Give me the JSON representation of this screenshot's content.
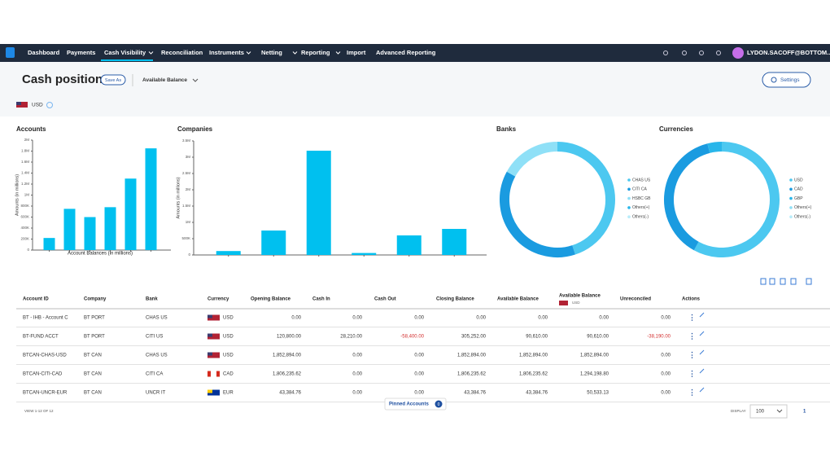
{
  "nav": {
    "items": [
      "Dashboard",
      "Payments",
      "Cash Visibility",
      "Reconciliation",
      "Instruments",
      "Netting",
      "Reporting",
      "Import",
      "Advanced Reporting"
    ],
    "user": "LYDON.SACOFF@BOTTOM..."
  },
  "header": {
    "title": "Cash position",
    "save_as": "Save As",
    "view": "Available Balance",
    "settings": "Settings",
    "currency": "USD"
  },
  "chart_data": [
    {
      "type": "bar",
      "title": "Accounts",
      "y_label": "Amounts (in millions)",
      "x_label": "Account Balances (in millions)",
      "categories": [
        null,
        null,
        null,
        null,
        null,
        null
      ],
      "values": [
        220000,
        750000,
        600000,
        780000,
        1300000,
        1850000
      ],
      "color": "#00c0ef",
      "ylim": [
        0,
        2000000
      ],
      "yticks": [
        0,
        {
          "value": 200000,
          "label": "200K"
        },
        {
          "value": 400000,
          "label": "400K"
        },
        {
          "value": 600000,
          "label": "600K"
        },
        {
          "value": 800000,
          "label": "800K"
        },
        {
          "value": 1000000,
          "label": "1M"
        },
        {
          "value": 1200000,
          "label": "1.2M"
        },
        {
          "value": 1400000,
          "label": "1.4M"
        },
        {
          "value": 1600000,
          "label": "1.6M"
        },
        {
          "value": 1800000,
          "label": "1.8M"
        },
        {
          "value": 2000000,
          "label": "2M"
        }
      ]
    },
    {
      "type": "bar",
      "title": "Companies",
      "y_label": "Amounts (in millions)",
      "categories": [
        null,
        null,
        null,
        null,
        null,
        null
      ],
      "values": [
        120000,
        750000,
        3200000,
        60000,
        600000,
        800000
      ],
      "color": "#00c0ef",
      "ylim": [
        0,
        3500000
      ],
      "yticks": [
        0,
        {
          "value": 500000,
          "label": "500K"
        },
        {
          "value": 1000000,
          "label": "1M"
        },
        {
          "value": 1500000,
          "label": "1.5M"
        },
        {
          "value": 2000000,
          "label": "2M"
        },
        {
          "value": 2500000,
          "label": "2.5M"
        },
        {
          "value": 3000000,
          "label": "3M"
        },
        {
          "value": 3500000,
          "label": "3.5M"
        }
      ]
    },
    {
      "type": "donut",
      "title": "Banks",
      "categories": [
        "CHAS US",
        "CITI CA",
        "HSBC GB",
        "Others(+)",
        "Others(-)"
      ],
      "values": [
        45,
        38,
        17,
        0,
        0
      ],
      "colors": [
        "#4cc8f0",
        "#1a9be0",
        "#8fe0f7",
        "#29b6ea",
        "#b8ecfa"
      ]
    },
    {
      "type": "donut",
      "title": "Currencies",
      "categories": [
        "USD",
        "CAD",
        "GBP",
        "Others(+)",
        "Others(-)"
      ],
      "values": [
        58,
        38,
        4,
        0,
        0
      ],
      "colors": [
        "#4cc8f0",
        "#1a9be0",
        "#29b6ea",
        "#8fe0f7",
        "#b8ecfa"
      ]
    }
  ],
  "table": {
    "columns": [
      "Account ID",
      "Company",
      "Bank",
      "Currency",
      "Opening Balance",
      "Cash In",
      "Cash Out",
      "Closing Balance",
      "Available Balance",
      "Available Balance",
      "Unreconciled",
      "Actions"
    ],
    "available_unit": "USD",
    "rows": [
      [
        "BT - IHB - Account C",
        "BT PORT",
        "CHAS US",
        "USD",
        "0.00",
        "0.00",
        "0.00",
        "0.00",
        "0.00",
        "0.00",
        "0.00"
      ],
      [
        "BT-FUND ACCT",
        "BT PORT",
        "CITI US",
        "USD",
        "120,800.00",
        "28,210.00",
        "-58,400.00",
        "305,252.00",
        "90,610.00",
        "90,610.00",
        "-38,190.00"
      ],
      [
        "BTCAN-CHAS-USD",
        "BT CAN",
        "CHAS US",
        "USD",
        "1,852,894.00",
        "0.00",
        "0.00",
        "1,852,894.00",
        "1,852,894.00",
        "1,852,894.00",
        "0.00"
      ],
      [
        "BTCAN-CITI-CAD",
        "BT CAN",
        "CITI CA",
        "CAD",
        "1,806,235.62",
        "0.00",
        "0.00",
        "1,806,235.62",
        "1,806,235.62",
        "1,294,198.80",
        "0.00"
      ],
      [
        "BTCAN-UNCR-EUR",
        "BT CAN",
        "UNCR IT",
        "EUR",
        "43,384.76",
        "0.00",
        "0.00",
        "43,384.76",
        "43,384.76",
        "50,533.13",
        "0.00"
      ]
    ],
    "footer": {
      "view": "VIEW 1-12 OF 12",
      "pinned": "Pinned Accounts",
      "pinned_count": "0",
      "display": "DISPLAY",
      "display_value": "100",
      "page": "1"
    }
  }
}
